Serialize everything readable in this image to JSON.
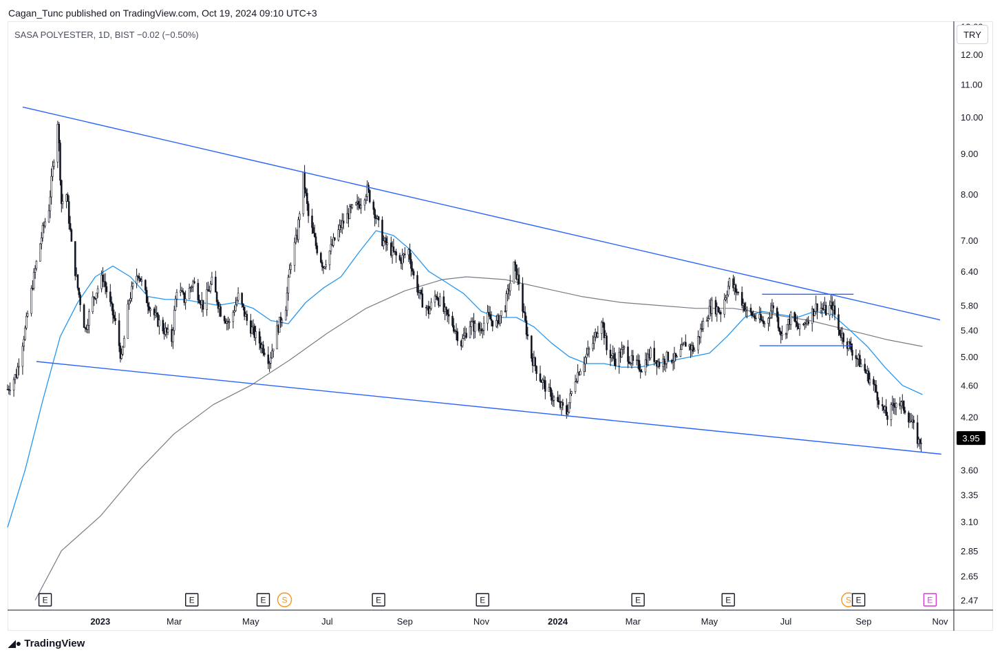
{
  "caption": "Cagan_Tunc published on TradingView.com, Oct 19, 2024 09:10 UTC+3",
  "symbol_line": "SASA POLYESTER, 1D, BIST  −0.02 (−0.50%)",
  "currency": "TRY",
  "footer_logo": "TradingView",
  "footer_icon": "tradingview-logo-icon",
  "chart_data": {
    "type": "candlestick",
    "title": "SASA POLYESTER, 1D, BIST",
    "change": "−0.02 (−0.50%)",
    "currency": "TRY",
    "scale": "log",
    "ylim": [
      2.4,
      13.2
    ],
    "xlim": [
      "2022-10-19",
      "2024-11-12"
    ],
    "last_price": 3.95,
    "y_ticks": [
      "13.00",
      "12.00",
      "11.00",
      "10.00",
      "9.00",
      "8.00",
      "7.00",
      "6.40",
      "5.80",
      "5.40",
      "5.00",
      "4.60",
      "4.20",
      "3.95",
      "3.60",
      "3.35",
      "3.10",
      "2.85",
      "2.65",
      "2.47"
    ],
    "x_ticks": [
      {
        "label": "2023",
        "date": "2023-01-01",
        "bold": true
      },
      {
        "label": "Mar",
        "date": "2023-03-01"
      },
      {
        "label": "May",
        "date": "2023-05-01"
      },
      {
        "label": "Jul",
        "date": "2023-07-01"
      },
      {
        "label": "Sep",
        "date": "2023-09-01"
      },
      {
        "label": "Nov",
        "date": "2023-11-01"
      },
      {
        "label": "2024",
        "date": "2024-01-01",
        "bold": true
      },
      {
        "label": "Mar",
        "date": "2024-03-01"
      },
      {
        "label": "May",
        "date": "2024-05-01"
      },
      {
        "label": "Jul",
        "date": "2024-07-01"
      },
      {
        "label": "Sep",
        "date": "2024-09-01"
      },
      {
        "label": "Nov",
        "date": "2024-11-01"
      }
    ],
    "price_path": [
      [
        "2022-10-19",
        4.55
      ],
      [
        "2022-10-26",
        4.75
      ],
      [
        "2022-11-02",
        5.4
      ],
      [
        "2022-11-09",
        6.3
      ],
      [
        "2022-11-16",
        7.2
      ],
      [
        "2022-11-21",
        7.7
      ],
      [
        "2022-11-24",
        8.6
      ],
      [
        "2022-11-28",
        9.9
      ],
      [
        "2022-12-01",
        7.8
      ],
      [
        "2022-12-05",
        8.0
      ],
      [
        "2022-12-09",
        6.9
      ],
      [
        "2022-12-14",
        6.1
      ],
      [
        "2022-12-20",
        5.4
      ],
      [
        "2022-12-26",
        5.9
      ],
      [
        "2023-01-03",
        6.3
      ],
      [
        "2023-01-09",
        5.8
      ],
      [
        "2023-01-13",
        5.5
      ],
      [
        "2023-01-18",
        4.95
      ],
      [
        "2023-01-24",
        5.9
      ],
      [
        "2023-01-31",
        6.4
      ],
      [
        "2023-02-07",
        5.9
      ],
      [
        "2023-02-14",
        5.6
      ],
      [
        "2023-02-21",
        5.4
      ],
      [
        "2023-02-27",
        5.25
      ],
      [
        "2023-03-03",
        6.1
      ],
      [
        "2023-03-09",
        5.9
      ],
      [
        "2023-03-16",
        6.2
      ],
      [
        "2023-03-24",
        5.8
      ],
      [
        "2023-03-31",
        6.2
      ],
      [
        "2023-04-07",
        5.7
      ],
      [
        "2023-04-14",
        5.5
      ],
      [
        "2023-04-21",
        5.95
      ],
      [
        "2023-04-28",
        5.55
      ],
      [
        "2023-05-05",
        5.3
      ],
      [
        "2023-05-12",
        5.1
      ],
      [
        "2023-05-16",
        4.95
      ],
      [
        "2023-05-22",
        5.4
      ],
      [
        "2023-05-29",
        5.8
      ],
      [
        "2023-06-02",
        6.6
      ],
      [
        "2023-06-07",
        7.1
      ],
      [
        "2023-06-12",
        8.4
      ],
      [
        "2023-06-16",
        7.5
      ],
      [
        "2023-06-22",
        6.9
      ],
      [
        "2023-06-28",
        6.5
      ],
      [
        "2023-07-05",
        6.9
      ],
      [
        "2023-07-12",
        7.3
      ],
      [
        "2023-07-19",
        7.6
      ],
      [
        "2023-07-27",
        7.8
      ],
      [
        "2023-08-02",
        8.1
      ],
      [
        "2023-08-08",
        7.6
      ],
      [
        "2023-08-14",
        7.0
      ],
      [
        "2023-08-21",
        6.8
      ],
      [
        "2023-08-28",
        6.6
      ],
      [
        "2023-09-04",
        6.8
      ],
      [
        "2023-09-08",
        6.3
      ],
      [
        "2023-09-14",
        5.9
      ],
      [
        "2023-09-20",
        5.7
      ],
      [
        "2023-09-26",
        6.0
      ],
      [
        "2023-10-02",
        5.7
      ],
      [
        "2023-10-09",
        5.5
      ],
      [
        "2023-10-16",
        5.2
      ],
      [
        "2023-10-23",
        5.5
      ],
      [
        "2023-10-30",
        5.4
      ],
      [
        "2023-11-06",
        5.6
      ],
      [
        "2023-11-13",
        5.5
      ],
      [
        "2023-11-20",
        5.8
      ],
      [
        "2023-11-27",
        6.5
      ],
      [
        "2023-12-01",
        6.2
      ],
      [
        "2023-12-05",
        5.6
      ],
      [
        "2023-12-11",
        5.0
      ],
      [
        "2023-12-18",
        4.7
      ],
      [
        "2023-12-25",
        4.5
      ],
      [
        "2024-01-02",
        4.35
      ],
      [
        "2024-01-08",
        4.25
      ],
      [
        "2024-01-15",
        4.7
      ],
      [
        "2024-01-22",
        4.95
      ],
      [
        "2024-01-29",
        5.2
      ],
      [
        "2024-02-05",
        5.6
      ],
      [
        "2024-02-09",
        5.1
      ],
      [
        "2024-02-16",
        4.95
      ],
      [
        "2024-02-23",
        5.1
      ],
      [
        "2024-03-01",
        4.9
      ],
      [
        "2024-03-08",
        4.85
      ],
      [
        "2024-03-15",
        5.05
      ],
      [
        "2024-03-22",
        4.9
      ],
      [
        "2024-03-29",
        5.0
      ],
      [
        "2024-04-05",
        4.95
      ],
      [
        "2024-04-12",
        5.2
      ],
      [
        "2024-04-19",
        5.1
      ],
      [
        "2024-04-26",
        5.5
      ],
      [
        "2024-05-03",
        5.8
      ],
      [
        "2024-05-10",
        5.7
      ],
      [
        "2024-05-17",
        6.2
      ],
      [
        "2024-05-24",
        6.0
      ],
      [
        "2024-05-31",
        5.7
      ],
      [
        "2024-06-07",
        5.6
      ],
      [
        "2024-06-14",
        5.5
      ],
      [
        "2024-06-21",
        5.8
      ],
      [
        "2024-06-28",
        5.3
      ],
      [
        "2024-07-05",
        5.6
      ],
      [
        "2024-07-12",
        5.4
      ],
      [
        "2024-07-19",
        5.6
      ],
      [
        "2024-07-26",
        5.8
      ],
      [
        "2024-08-02",
        5.7
      ],
      [
        "2024-08-07",
        5.8
      ],
      [
        "2024-08-12",
        5.4
      ],
      [
        "2024-08-19",
        5.2
      ],
      [
        "2024-08-26",
        5.0
      ],
      [
        "2024-09-02",
        4.8
      ],
      [
        "2024-09-09",
        4.6
      ],
      [
        "2024-09-16",
        4.3
      ],
      [
        "2024-09-20",
        4.2
      ],
      [
        "2024-09-27",
        4.4
      ],
      [
        "2024-10-04",
        4.3
      ],
      [
        "2024-10-10",
        4.1
      ],
      [
        "2024-10-15",
        3.9
      ],
      [
        "2024-10-18",
        3.95
      ]
    ],
    "ma_blue": [
      [
        "2022-10-19",
        3.05
      ],
      [
        "2022-11-02",
        3.6
      ],
      [
        "2022-11-16",
        4.4
      ],
      [
        "2022-11-30",
        5.3
      ],
      [
        "2022-12-14",
        5.85
      ],
      [
        "2022-12-28",
        6.3
      ],
      [
        "2023-01-11",
        6.5
      ],
      [
        "2023-01-25",
        6.3
      ],
      [
        "2023-02-08",
        5.95
      ],
      [
        "2023-02-22",
        5.9
      ],
      [
        "2023-03-08",
        5.9
      ],
      [
        "2023-03-22",
        5.85
      ],
      [
        "2023-04-05",
        5.8
      ],
      [
        "2023-04-19",
        5.85
      ],
      [
        "2023-05-03",
        5.75
      ],
      [
        "2023-05-17",
        5.55
      ],
      [
        "2023-05-31",
        5.5
      ],
      [
        "2023-06-14",
        5.85
      ],
      [
        "2023-06-28",
        6.1
      ],
      [
        "2023-07-12",
        6.3
      ],
      [
        "2023-07-26",
        6.75
      ],
      [
        "2023-08-09",
        7.2
      ],
      [
        "2023-08-23",
        7.1
      ],
      [
        "2023-09-06",
        6.8
      ],
      [
        "2023-09-20",
        6.4
      ],
      [
        "2023-10-04",
        6.2
      ],
      [
        "2023-10-18",
        6.0
      ],
      [
        "2023-11-01",
        5.7
      ],
      [
        "2023-11-15",
        5.6
      ],
      [
        "2023-11-29",
        5.6
      ],
      [
        "2023-12-13",
        5.45
      ],
      [
        "2023-12-27",
        5.2
      ],
      [
        "2024-01-10",
        5.0
      ],
      [
        "2024-01-24",
        4.9
      ],
      [
        "2024-02-07",
        4.9
      ],
      [
        "2024-02-21",
        4.85
      ],
      [
        "2024-03-06",
        4.85
      ],
      [
        "2024-03-20",
        4.9
      ],
      [
        "2024-04-03",
        4.95
      ],
      [
        "2024-04-17",
        5.0
      ],
      [
        "2024-05-01",
        5.05
      ],
      [
        "2024-05-15",
        5.3
      ],
      [
        "2024-05-29",
        5.6
      ],
      [
        "2024-06-12",
        5.7
      ],
      [
        "2024-06-26",
        5.65
      ],
      [
        "2024-07-10",
        5.6
      ],
      [
        "2024-07-24",
        5.7
      ],
      [
        "2024-08-07",
        5.65
      ],
      [
        "2024-08-21",
        5.4
      ],
      [
        "2024-09-04",
        5.15
      ],
      [
        "2024-09-18",
        4.85
      ],
      [
        "2024-10-02",
        4.6
      ],
      [
        "2024-10-18",
        4.48
      ]
    ],
    "ma_gray": [
      [
        "2022-11-10",
        2.47
      ],
      [
        "2022-12-01",
        2.85
      ],
      [
        "2023-01-01",
        3.15
      ],
      [
        "2023-02-01",
        3.6
      ],
      [
        "2023-03-01",
        4.0
      ],
      [
        "2023-04-01",
        4.35
      ],
      [
        "2023-05-01",
        4.6
      ],
      [
        "2023-06-01",
        4.95
      ],
      [
        "2023-07-01",
        5.35
      ],
      [
        "2023-08-01",
        5.75
      ],
      [
        "2023-09-01",
        6.05
      ],
      [
        "2023-10-01",
        6.25
      ],
      [
        "2023-10-20",
        6.3
      ],
      [
        "2023-11-20",
        6.25
      ],
      [
        "2023-12-20",
        6.1
      ],
      [
        "2024-01-20",
        5.95
      ],
      [
        "2024-02-20",
        5.85
      ],
      [
        "2024-03-20",
        5.8
      ],
      [
        "2024-04-20",
        5.75
      ],
      [
        "2024-05-20",
        5.75
      ],
      [
        "2024-06-20",
        5.65
      ],
      [
        "2024-07-20",
        5.55
      ],
      [
        "2024-08-20",
        5.4
      ],
      [
        "2024-09-20",
        5.25
      ],
      [
        "2024-10-18",
        5.15
      ]
    ],
    "trendlines": [
      {
        "name": "upper",
        "from": [
          "2022-10-31",
          10.3
        ],
        "to": [
          "2024-11-01",
          5.56
        ]
      },
      {
        "name": "lower",
        "from": [
          "2022-11-11",
          4.93
        ],
        "to": [
          "2024-11-02",
          3.77
        ]
      },
      {
        "name": "range-top",
        "from": [
          "2024-06-12",
          5.99
        ],
        "to": [
          "2024-08-24",
          5.99
        ]
      },
      {
        "name": "range-bottom",
        "from": [
          "2024-06-10",
          5.16
        ],
        "to": [
          "2024-08-23",
          5.16
        ]
      }
    ],
    "events": [
      {
        "label": "E",
        "date": "2022-11-18",
        "color": "#131722"
      },
      {
        "label": "E",
        "date": "2023-03-15",
        "color": "#131722"
      },
      {
        "label": "E",
        "date": "2023-05-11",
        "color": "#131722"
      },
      {
        "label": "S",
        "date": "2023-05-28",
        "color": "#f7931a",
        "shape": "circle"
      },
      {
        "label": "E",
        "date": "2023-08-11",
        "color": "#131722"
      },
      {
        "label": "E",
        "date": "2023-11-02",
        "color": "#131722"
      },
      {
        "label": "E",
        "date": "2024-03-05",
        "color": "#131722"
      },
      {
        "label": "E",
        "date": "2024-05-16",
        "color": "#131722"
      },
      {
        "label": "S",
        "date": "2024-08-20",
        "color": "#f7931a",
        "shape": "circle"
      },
      {
        "label": "E",
        "date": "2024-08-28",
        "color": "#131722"
      },
      {
        "label": "E",
        "date": "2024-10-24",
        "color": "#d63ad6"
      }
    ],
    "colors": {
      "candle": "#131722",
      "trendline": "#2962ff",
      "ma_fast": "#2196f3",
      "ma_slow": "#787b86",
      "price_label_bg": "#000000",
      "price_label_fg": "#ffffff"
    }
  }
}
